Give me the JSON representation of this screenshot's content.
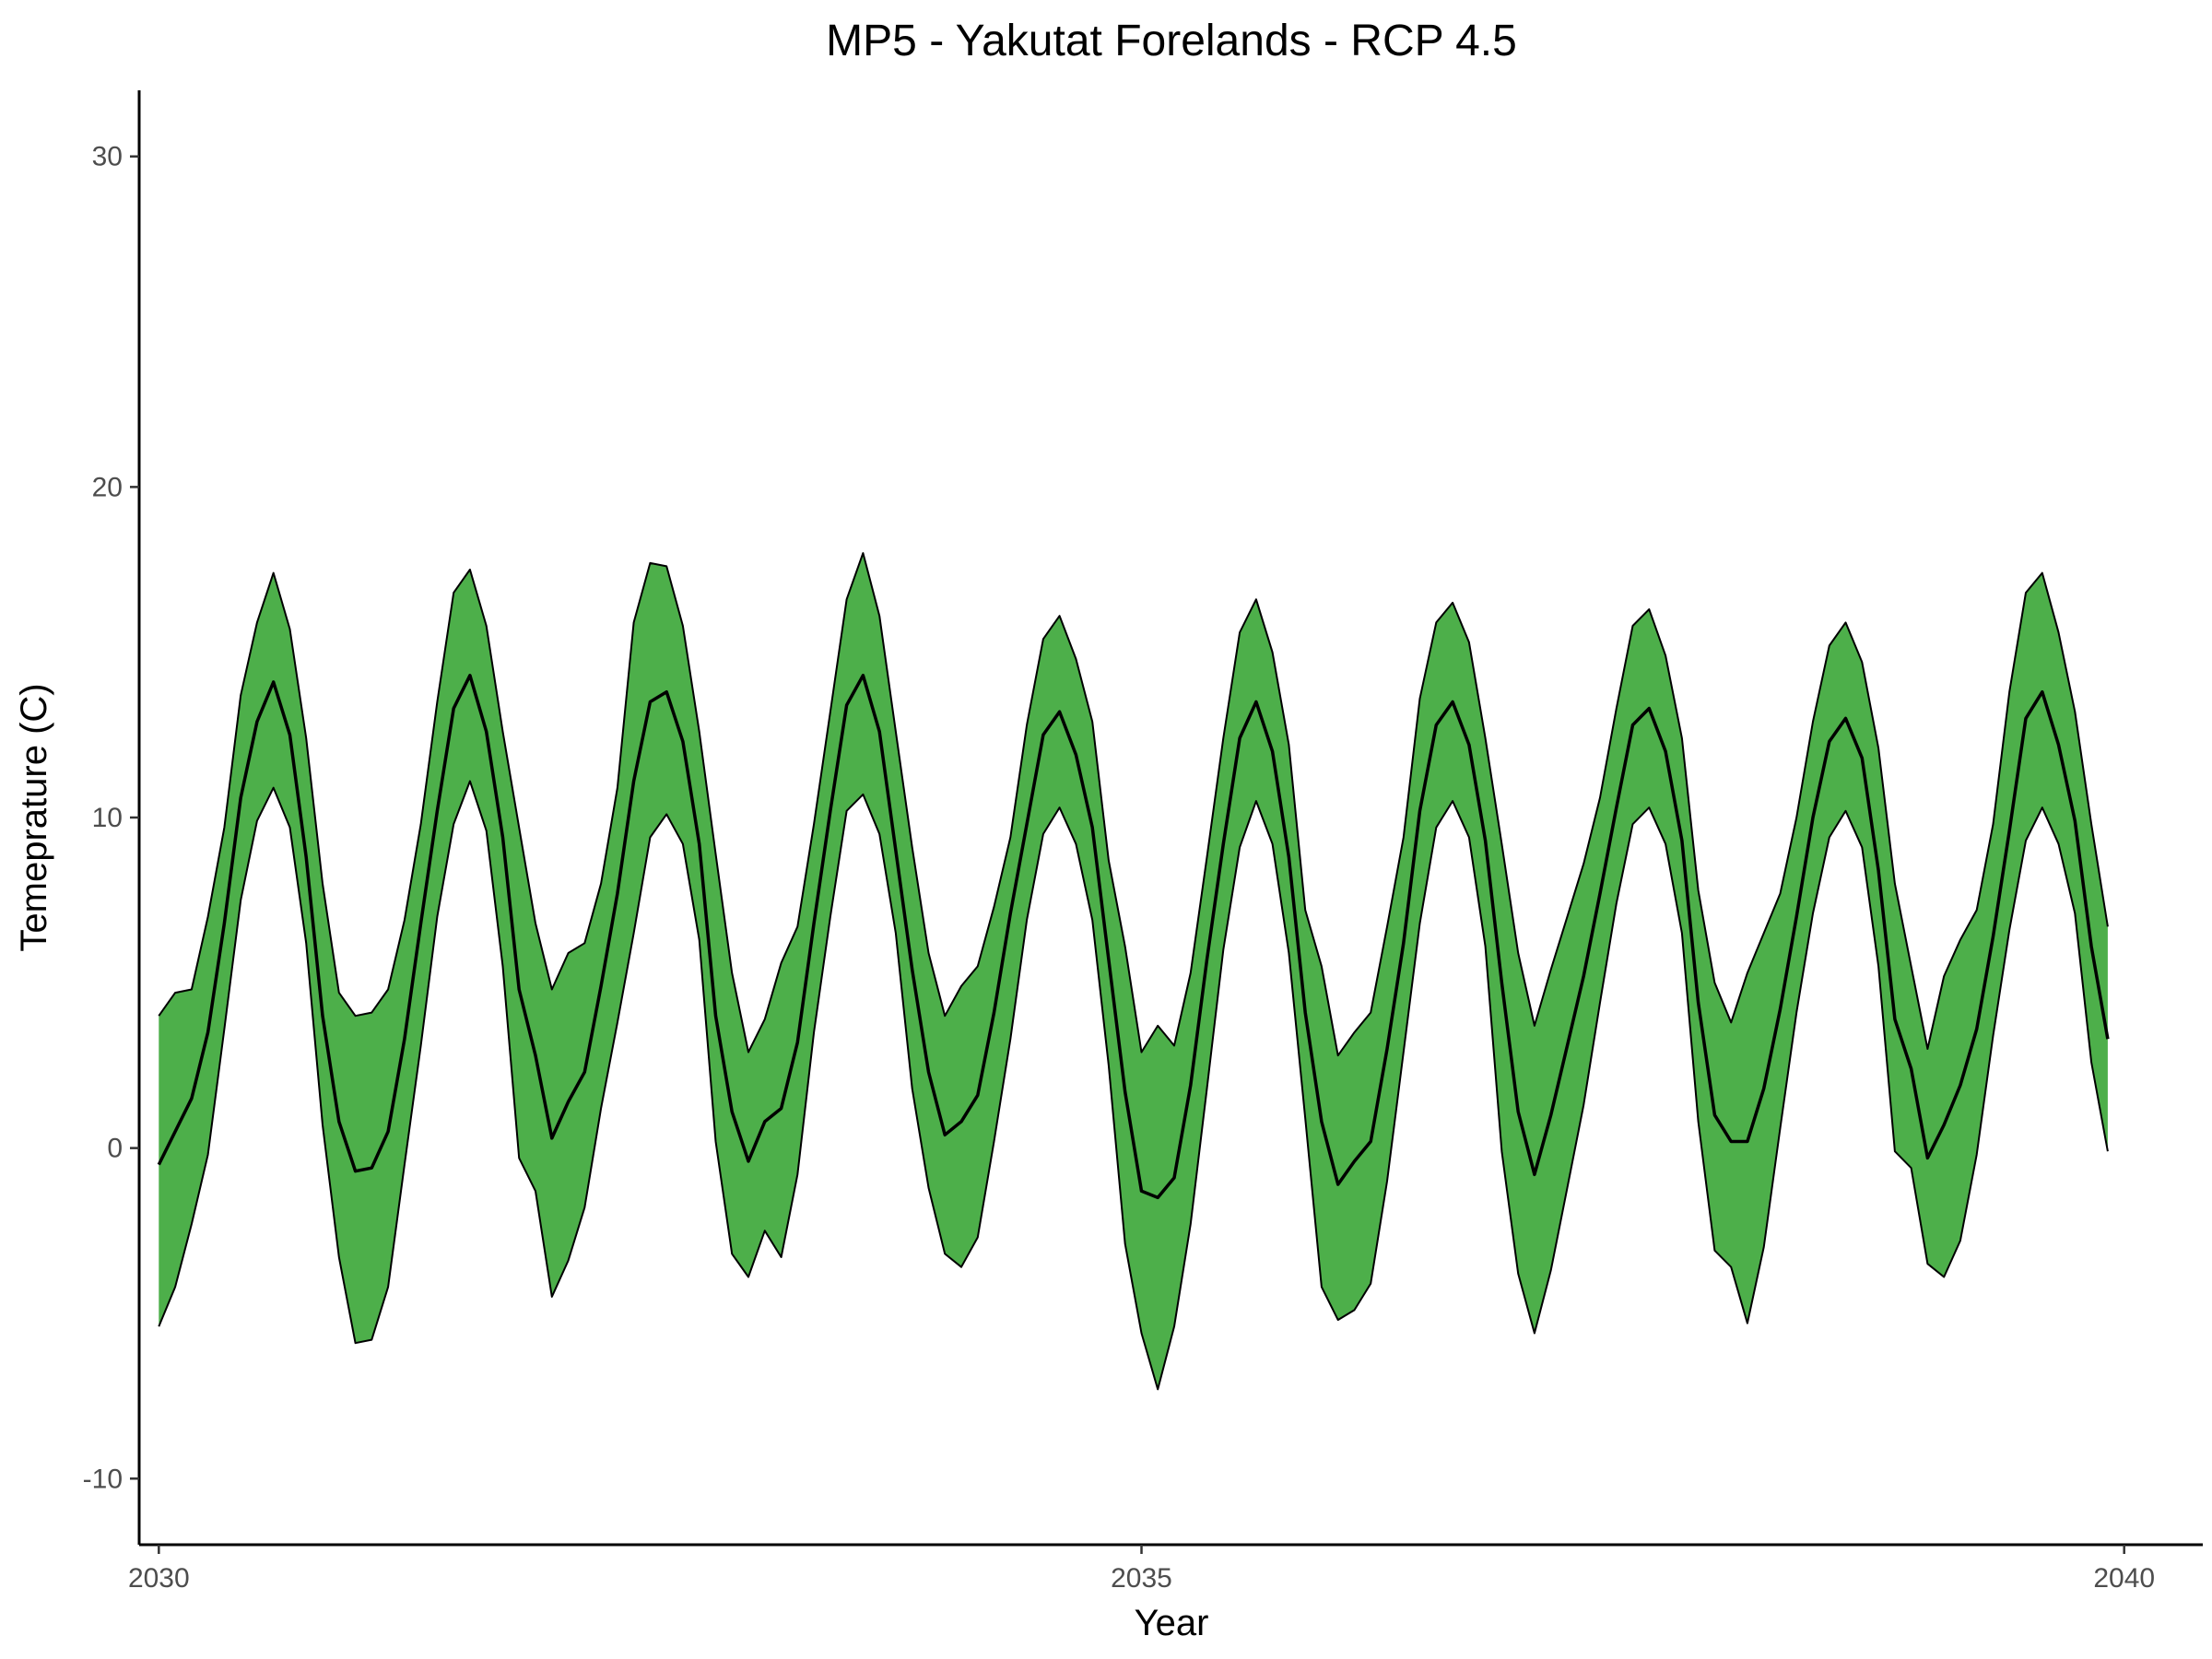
{
  "chart_data": {
    "type": "line",
    "title": "MP5 - Yakutat Forelands - RCP 4.5",
    "xlabel": "Year",
    "ylabel": "Temeprature (C)",
    "xlim": [
      2029.9,
      2040.4
    ],
    "ylim": [
      -12,
      32
    ],
    "xticks": [
      2030,
      2035,
      2040
    ],
    "yticks": [
      -10,
      0,
      10,
      20,
      30
    ],
    "x_start": 2030,
    "x_step": 0.08333,
    "band_color": "#4daf4a",
    "line_color": "#000000",
    "grid": false,
    "legend": "none",
    "series": [
      {
        "role": "upper",
        "values": [
          4.0,
          4.7,
          4.8,
          7.0,
          9.7,
          13.7,
          15.9,
          17.4,
          15.7,
          12.4,
          8.0,
          4.7,
          4.0,
          4.1,
          4.8,
          6.9,
          9.8,
          13.5,
          16.8,
          17.5,
          15.8,
          12.6,
          9.7,
          6.8,
          4.8,
          5.9,
          6.2,
          8.0,
          10.9,
          15.9,
          17.7,
          17.6,
          15.8,
          12.6,
          8.9,
          5.3,
          2.9,
          3.9,
          5.6,
          6.7,
          9.8,
          13.2,
          16.6,
          18.0,
          16.1,
          12.6,
          9.1,
          5.9,
          4.0,
          4.9,
          5.5,
          7.3,
          9.4,
          12.8,
          15.4,
          16.1,
          14.8,
          12.9,
          8.7,
          6.1,
          2.9,
          3.7,
          3.1,
          5.3,
          8.8,
          12.4,
          15.6,
          16.6,
          15.0,
          12.2,
          7.2,
          5.5,
          2.8,
          3.5,
          4.1,
          6.7,
          9.4,
          13.6,
          15.9,
          16.5,
          15.3,
          12.4,
          9.2,
          5.9,
          3.7,
          5.4,
          7.0,
          8.6,
          10.6,
          13.3,
          15.8,
          16.3,
          14.9,
          12.4,
          7.8,
          5.0,
          3.8,
          5.3,
          6.5,
          7.7,
          10.0,
          12.9,
          15.2,
          15.9,
          14.7,
          12.1,
          8.0,
          5.5,
          3.0,
          5.2,
          6.3,
          7.2,
          9.8,
          13.8,
          16.8,
          17.4,
          15.6,
          13.2,
          9.8,
          6.7
        ]
      },
      {
        "role": "mean",
        "values": [
          -0.5,
          0.5,
          1.5,
          3.5,
          6.8,
          10.6,
          12.9,
          14.1,
          12.5,
          8.8,
          4.0,
          0.8,
          -0.7,
          -0.6,
          0.5,
          3.3,
          6.8,
          10.2,
          13.3,
          14.3,
          12.6,
          9.4,
          4.8,
          2.8,
          0.3,
          1.4,
          2.3,
          4.9,
          7.7,
          11.1,
          13.5,
          13.8,
          12.3,
          9.2,
          4.0,
          1.1,
          -0.4,
          0.8,
          1.2,
          3.2,
          6.8,
          10.2,
          13.4,
          14.3,
          12.6,
          9.0,
          5.4,
          2.3,
          0.4,
          0.8,
          1.6,
          4.1,
          7.1,
          9.8,
          12.5,
          13.2,
          11.9,
          9.7,
          5.7,
          1.7,
          -1.3,
          -1.5,
          -0.9,
          1.9,
          5.7,
          9.2,
          12.4,
          13.5,
          12.0,
          8.8,
          4.1,
          0.8,
          -1.1,
          -0.4,
          0.2,
          3.0,
          6.2,
          10.2,
          12.8,
          13.5,
          12.2,
          9.3,
          5.0,
          1.1,
          -0.8,
          1.0,
          3.1,
          5.2,
          7.7,
          10.3,
          12.8,
          13.3,
          12.0,
          9.3,
          4.4,
          1.0,
          0.2,
          0.2,
          1.8,
          4.2,
          7.0,
          10.0,
          12.3,
          13.0,
          11.8,
          8.4,
          3.9,
          2.4,
          -0.3,
          0.7,
          1.9,
          3.6,
          6.4,
          9.6,
          13.0,
          13.8,
          12.2,
          9.9,
          6.1,
          3.3
        ]
      },
      {
        "role": "lower",
        "values": [
          -5.4,
          -4.2,
          -2.3,
          -0.2,
          3.6,
          7.5,
          9.9,
          10.9,
          9.7,
          6.2,
          0.7,
          -3.3,
          -5.9,
          -5.8,
          -4.2,
          -0.5,
          3.1,
          7.0,
          9.8,
          11.1,
          9.6,
          5.5,
          -0.3,
          -1.3,
          -4.5,
          -3.4,
          -1.8,
          1.2,
          3.8,
          6.5,
          9.4,
          10.1,
          9.2,
          6.3,
          0.2,
          -3.2,
          -3.9,
          -2.5,
          -3.3,
          -0.8,
          3.5,
          7.0,
          10.2,
          10.7,
          9.5,
          6.5,
          1.8,
          -1.2,
          -3.2,
          -3.6,
          -2.7,
          0.2,
          3.3,
          6.9,
          9.5,
          10.3,
          9.2,
          6.9,
          2.5,
          -2.9,
          -5.6,
          -7.3,
          -5.4,
          -2.3,
          1.8,
          6.0,
          9.1,
          10.5,
          9.2,
          5.9,
          0.9,
          -4.2,
          -5.2,
          -4.9,
          -4.1,
          -1.0,
          2.9,
          6.8,
          9.7,
          10.5,
          9.4,
          6.1,
          -0.1,
          -3.8,
          -5.6,
          -3.7,
          -1.2,
          1.3,
          4.4,
          7.4,
          9.8,
          10.3,
          9.2,
          6.5,
          0.8,
          -3.1,
          -3.6,
          -5.3,
          -3.0,
          0.6,
          4.1,
          7.1,
          9.4,
          10.2,
          9.1,
          5.5,
          -0.1,
          -0.6,
          -3.5,
          -3.9,
          -2.8,
          -0.2,
          3.4,
          6.6,
          9.3,
          10.3,
          9.2,
          7.1,
          2.6,
          -0.1
        ]
      }
    ]
  }
}
